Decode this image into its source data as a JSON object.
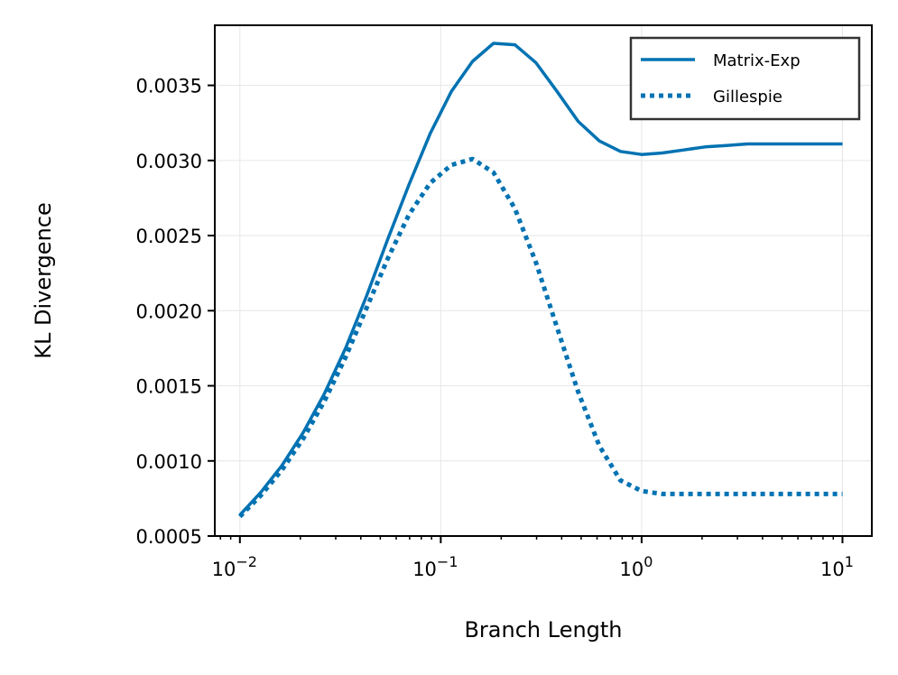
{
  "chart_data": {
    "type": "line",
    "title": "",
    "xlabel": "Branch Length",
    "ylabel": "KL Divergence",
    "xscale": "log",
    "xlim": [
      0.0075,
      14
    ],
    "ylim": [
      0.0005,
      0.0039
    ],
    "grid": true,
    "legend_position": "top-right",
    "color": "#0072b2",
    "x_ticks": [
      {
        "base": "10",
        "exp": "−2"
      },
      {
        "base": "10",
        "exp": "−1"
      },
      {
        "base": "10",
        "exp": "0"
      },
      {
        "base": "10",
        "exp": "1"
      }
    ],
    "y_tick_labels": [
      "0.0005",
      "0.0010",
      "0.0015",
      "0.0020",
      "0.0025",
      "0.0030",
      "0.0035"
    ],
    "y_tick_values": [
      0.0005,
      0.001,
      0.0015,
      0.002,
      0.0025,
      0.003,
      0.0035
    ],
    "x": [
      0.01,
      0.0127,
      0.0162,
      0.0207,
      0.0264,
      0.0336,
      0.0428,
      0.0546,
      0.0695,
      0.0886,
      0.113,
      0.144,
      0.183,
      0.234,
      0.298,
      0.379,
      0.483,
      0.616,
      0.785,
      1.0,
      1.27,
      1.62,
      2.07,
      2.64,
      3.36,
      4.28,
      5.46,
      6.95,
      8.86,
      10.0
    ],
    "series": [
      {
        "name": "Matrix-Exp",
        "style": "solid",
        "values": [
          0.00064,
          0.00079,
          0.00097,
          0.00119,
          0.00145,
          0.00175,
          0.0021,
          0.00248,
          0.00284,
          0.00318,
          0.00346,
          0.00366,
          0.00378,
          0.00377,
          0.00365,
          0.00346,
          0.00326,
          0.00313,
          0.00306,
          0.00304,
          0.00305,
          0.00307,
          0.00309,
          0.0031,
          0.00311,
          0.00311,
          0.00311,
          0.00311,
          0.00311,
          0.00311
        ]
      },
      {
        "name": "Gillespie",
        "style": "dotted",
        "values": [
          0.00063,
          0.00077,
          0.00094,
          0.00115,
          0.0014,
          0.00169,
          0.00202,
          0.00235,
          0.00264,
          0.00285,
          0.00297,
          0.00301,
          0.00292,
          0.00268,
          0.00232,
          0.00189,
          0.00146,
          0.0011,
          0.00087,
          0.0008,
          0.00078,
          0.00078,
          0.00078,
          0.00078,
          0.00078,
          0.00078,
          0.00078,
          0.00078,
          0.00078,
          0.00078
        ]
      }
    ]
  }
}
